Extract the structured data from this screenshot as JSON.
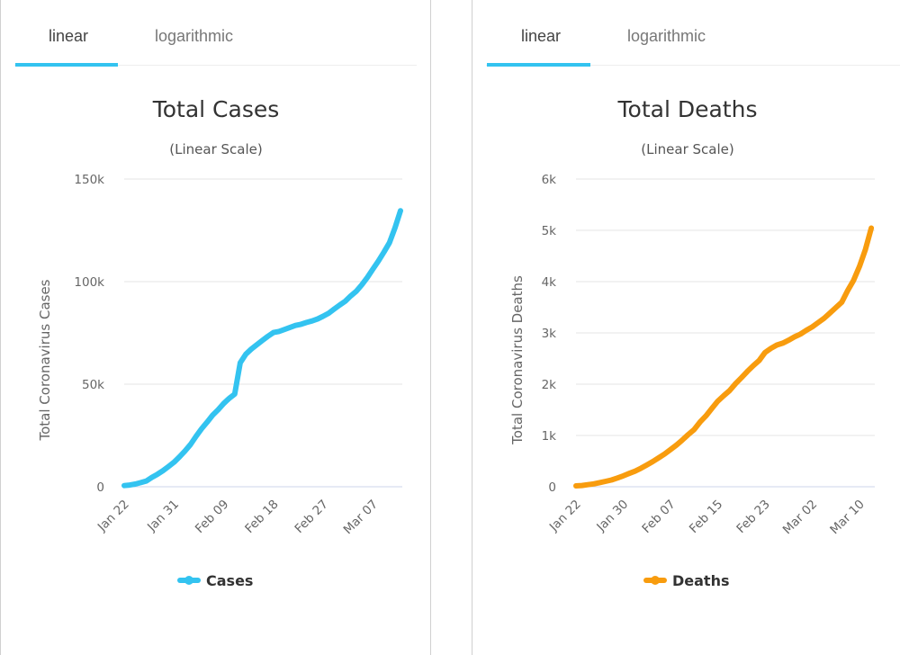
{
  "panels": [
    {
      "tabs": [
        {
          "label": "linear",
          "active": true
        },
        {
          "label": "logarithmic",
          "active": false
        }
      ],
      "accent": "#33c3f0"
    },
    {
      "tabs": [
        {
          "label": "linear",
          "active": true
        },
        {
          "label": "logarithmic",
          "active": false
        }
      ],
      "accent": "#33c3f0"
    }
  ],
  "chart_data": [
    {
      "type": "line",
      "title": "Total Cases",
      "subtitle": "(Linear Scale)",
      "xlabel": "",
      "ylabel": "Total Coronavirus Cases",
      "ylim": [
        0,
        150000
      ],
      "yticks": [
        0,
        50000,
        100000,
        150000
      ],
      "ytick_labels": [
        "0",
        "50k",
        "100k",
        "150k"
      ],
      "xtick_labels": [
        "Jan 22",
        "Jan 31",
        "Feb 09",
        "Feb 18",
        "Feb 27",
        "Mar 07"
      ],
      "xtick_index": [
        0,
        9,
        18,
        27,
        36,
        45
      ],
      "grid": true,
      "legend": "bottom-center",
      "color": "#33c3f0",
      "series": [
        {
          "name": "Cases",
          "x_start": "Jan 22",
          "values": [
            580,
            845,
            1317,
            2015,
            2800,
            4581,
            6058,
            7813,
            9823,
            11950,
            14553,
            17391,
            20630,
            24554,
            28276,
            31481,
            34886,
            37558,
            40554,
            43103,
            45171,
            60374,
            64617,
            67100,
            69264,
            71332,
            73327,
            75184,
            75700,
            76677,
            77673,
            78651,
            79205,
            80087,
            80828,
            81820,
            83112,
            84615,
            86604,
            88585,
            90443,
            93016,
            95314,
            98425,
            102050,
            106099,
            109991,
            114381,
            118948,
            126214,
            134576
          ]
        }
      ]
    },
    {
      "type": "line",
      "title": "Total Deaths",
      "subtitle": "(Linear Scale)",
      "xlabel": "",
      "ylabel": "Total Coronavirus Deaths",
      "ylim": [
        0,
        6000
      ],
      "yticks": [
        0,
        1000,
        2000,
        3000,
        4000,
        5000,
        6000
      ],
      "ytick_labels": [
        "0",
        "1k",
        "2k",
        "3k",
        "4k",
        "5k",
        "6k"
      ],
      "xtick_labels": [
        "Jan 22",
        "Jan 30",
        "Feb 07",
        "Feb 15",
        "Feb 23",
        "Mar 02",
        "Mar 10"
      ],
      "xtick_index": [
        0,
        8,
        16,
        24,
        32,
        40,
        48
      ],
      "grid": true,
      "legend": "bottom-center",
      "color": "#f89c0e",
      "series": [
        {
          "name": "Deaths",
          "x_start": "Jan 22",
          "values": [
            17,
            25,
            41,
            56,
            80,
            106,
            132,
            170,
            213,
            259,
            304,
            362,
            426,
            492,
            565,
            638,
            724,
            813,
            910,
            1018,
            1115,
            1261,
            1383,
            1526,
            1669,
            1775,
            1873,
            2009,
            2126,
            2247,
            2360,
            2460,
            2618,
            2699,
            2763,
            2800,
            2858,
            2923,
            2977,
            3050,
            3117,
            3202,
            3285,
            3387,
            3494,
            3599,
            3827,
            4025,
            4296,
            4628,
            5043
          ]
        }
      ]
    }
  ]
}
